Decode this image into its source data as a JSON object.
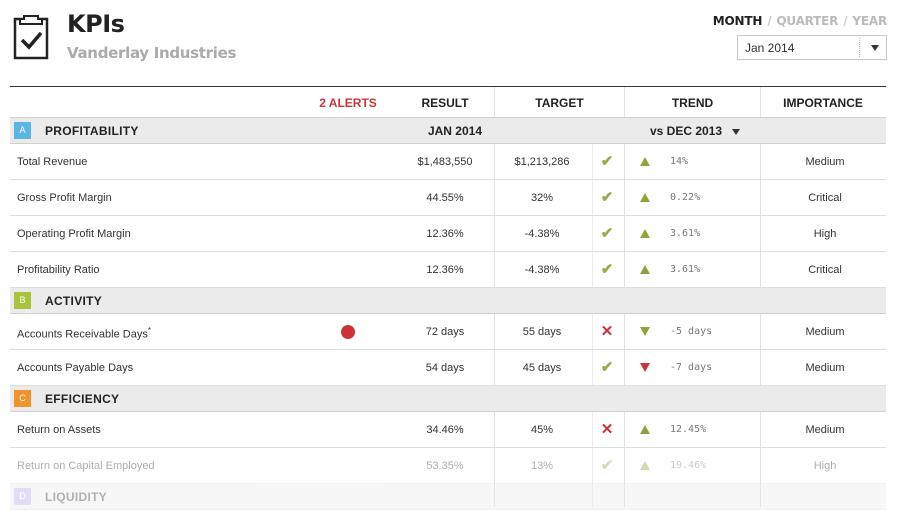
{
  "header": {
    "title": "KPIs",
    "subtitle": "Vanderlay Industries"
  },
  "period_toggle": {
    "options": [
      "MONTH",
      "QUARTER",
      "YEAR"
    ],
    "separator": "/",
    "active": "MONTH"
  },
  "date_select": {
    "value": "Jan 2014"
  },
  "columns": {
    "alerts": "2 ALERTS",
    "result": "RESULT",
    "target": "TARGET",
    "trend": "TREND",
    "importance": "IMPORTANCE"
  },
  "sections": [
    {
      "letter": "A",
      "title": "PROFITABILITY",
      "color": "#5bb5e6",
      "period": "JAN 2014",
      "trend_compare": "vs DEC 2013",
      "rows": [
        {
          "name": "Total Revenue",
          "result": "$1,483,550",
          "target": "$1,213,286",
          "status": "ok",
          "trend": "up",
          "trend_value": "14%",
          "importance": "Medium"
        },
        {
          "name": "Gross Profit Margin",
          "result": "44.55%",
          "target": "32%",
          "status": "ok",
          "trend": "up",
          "trend_value": "0.22%",
          "importance": "Critical"
        },
        {
          "name": "Operating Profit Margin",
          "result": "12.36%",
          "target": "-4.38%",
          "status": "ok",
          "trend": "up",
          "trend_value": "3.61%",
          "importance": "High"
        },
        {
          "name": "Profitability Ratio",
          "result": "12.36%",
          "target": "-4.38%",
          "status": "ok",
          "trend": "up",
          "trend_value": "3.61%",
          "importance": "Critical"
        }
      ]
    },
    {
      "letter": "B",
      "title": "ACTIVITY",
      "color": "#a7c43c",
      "rows": [
        {
          "name": "Accounts Receivable Days",
          "asterisk": "*",
          "alert": true,
          "result": "72 days",
          "target": "55 days",
          "status": "bad",
          "trend": "down-good",
          "trend_value": "-5 days",
          "importance": "Medium"
        },
        {
          "name": "Accounts Payable Days",
          "result": "54 days",
          "target": "45 days",
          "status": "ok",
          "trend": "down-bad",
          "trend_value": "-7 days",
          "importance": "Medium"
        }
      ]
    },
    {
      "letter": "C",
      "title": "EFFICIENCY",
      "color": "#f0932b",
      "rows": [
        {
          "name": "Return on Assets",
          "result": "34.46%",
          "target": "45%",
          "status": "bad",
          "trend": "up",
          "trend_value": "12.45%",
          "importance": "Medium"
        },
        {
          "name": "Return on Capital Employed",
          "result": "53.35%",
          "target": "13%",
          "status": "ok",
          "trend": "up",
          "trend_value": "19.46%",
          "importance": "High",
          "faded": true
        }
      ]
    },
    {
      "letter": "D",
      "title": "LIQUIDITY",
      "color": "#b59ae0",
      "faded": true,
      "rows": []
    }
  ]
}
